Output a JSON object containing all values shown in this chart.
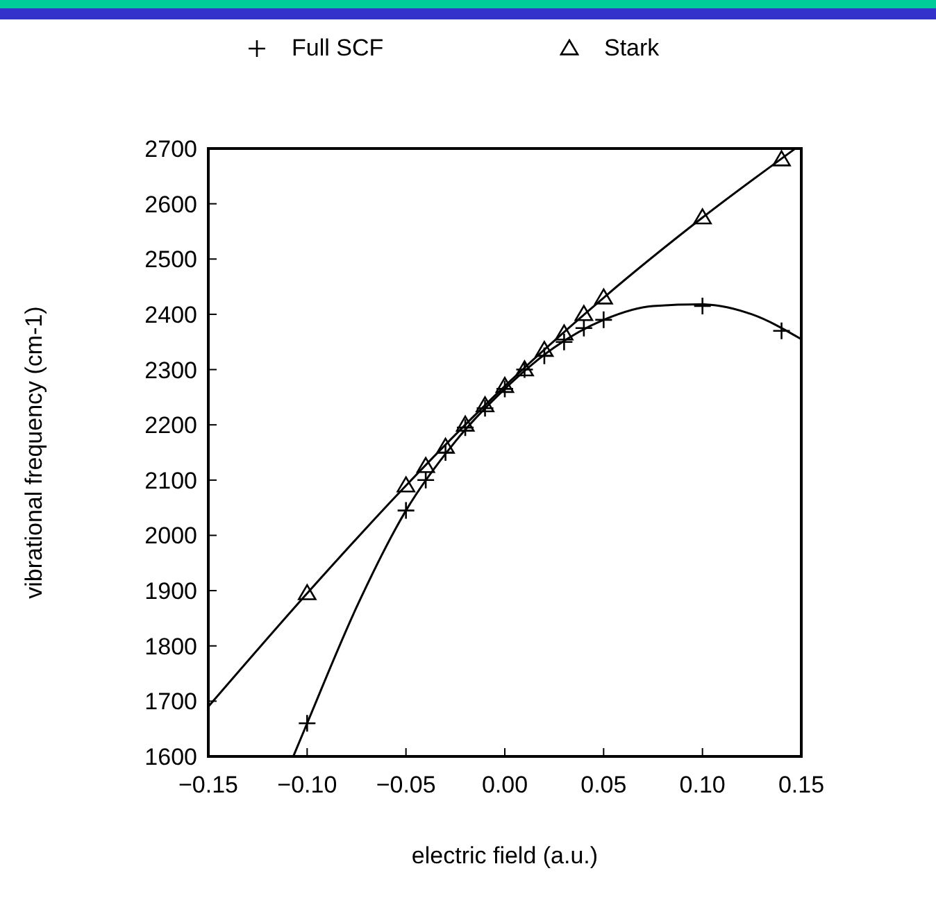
{
  "chart_data": {
    "type": "scatter",
    "xlabel": "electric field (a.u.)",
    "ylabel": "vibrational frequency (cm-1)",
    "xlim": [
      -0.15,
      0.15
    ],
    "ylim": [
      1600,
      2700
    ],
    "xticks": [
      {
        "value": -0.15,
        "label": "−0.15"
      },
      {
        "value": -0.1,
        "label": "−0.10"
      },
      {
        "value": -0.05,
        "label": "−0.05"
      },
      {
        "value": 0,
        "label": "0.00"
      },
      {
        "value": 0.05,
        "label": "0.05"
      },
      {
        "value": 0.1,
        "label": "0.10"
      },
      {
        "value": 0.15,
        "label": "0.15"
      }
    ],
    "yticks": [
      1600,
      1700,
      1800,
      1900,
      2000,
      2100,
      2200,
      2300,
      2400,
      2500,
      2600,
      2700
    ],
    "grid": false,
    "legend": "top",
    "series": [
      {
        "name": "Full SCF",
        "marker": "cross",
        "color": "#000000",
        "x": [
          -0.1,
          -0.05,
          -0.04,
          -0.03,
          -0.02,
          -0.01,
          0,
          0.01,
          0.02,
          0.03,
          0.04,
          0.05,
          0.1,
          0.14
        ],
        "values": [
          1660,
          2045,
          2100,
          2150,
          2195,
          2230,
          2265,
          2300,
          2325,
          2350,
          2375,
          2390,
          2415,
          2370
        ]
      },
      {
        "name": "Stark",
        "marker": "triangle",
        "color": "#000000",
        "x": [
          -0.1,
          -0.05,
          -0.04,
          -0.03,
          -0.02,
          -0.01,
          0,
          0.01,
          0.02,
          0.03,
          0.04,
          0.05,
          0.1,
          0.14
        ],
        "values": [
          1895,
          2090,
          2125,
          2160,
          2200,
          2235,
          2270,
          2300,
          2335,
          2365,
          2400,
          2430,
          2575,
          2680
        ]
      },
      {
        "type": "line",
        "marker": "none",
        "color": "#000000",
        "x": [
          -0.107,
          -0.1,
          -0.075,
          -0.05,
          -0.025,
          0,
          0.025,
          0.05,
          0.075,
          0.1,
          0.125,
          0.15
        ],
        "values": [
          1600,
          1660,
          1870,
          2045,
          2170,
          2265,
          2340,
          2390,
          2415,
          2418,
          2400,
          2355
        ]
      },
      {
        "type": "line",
        "marker": "none",
        "color": "#000000",
        "x": [
          -0.15,
          -0.1,
          -0.05,
          0,
          0.05,
          0.1,
          0.147
        ],
        "values": [
          1690,
          1895,
          2090,
          2270,
          2430,
          2575,
          2700
        ]
      }
    ]
  }
}
